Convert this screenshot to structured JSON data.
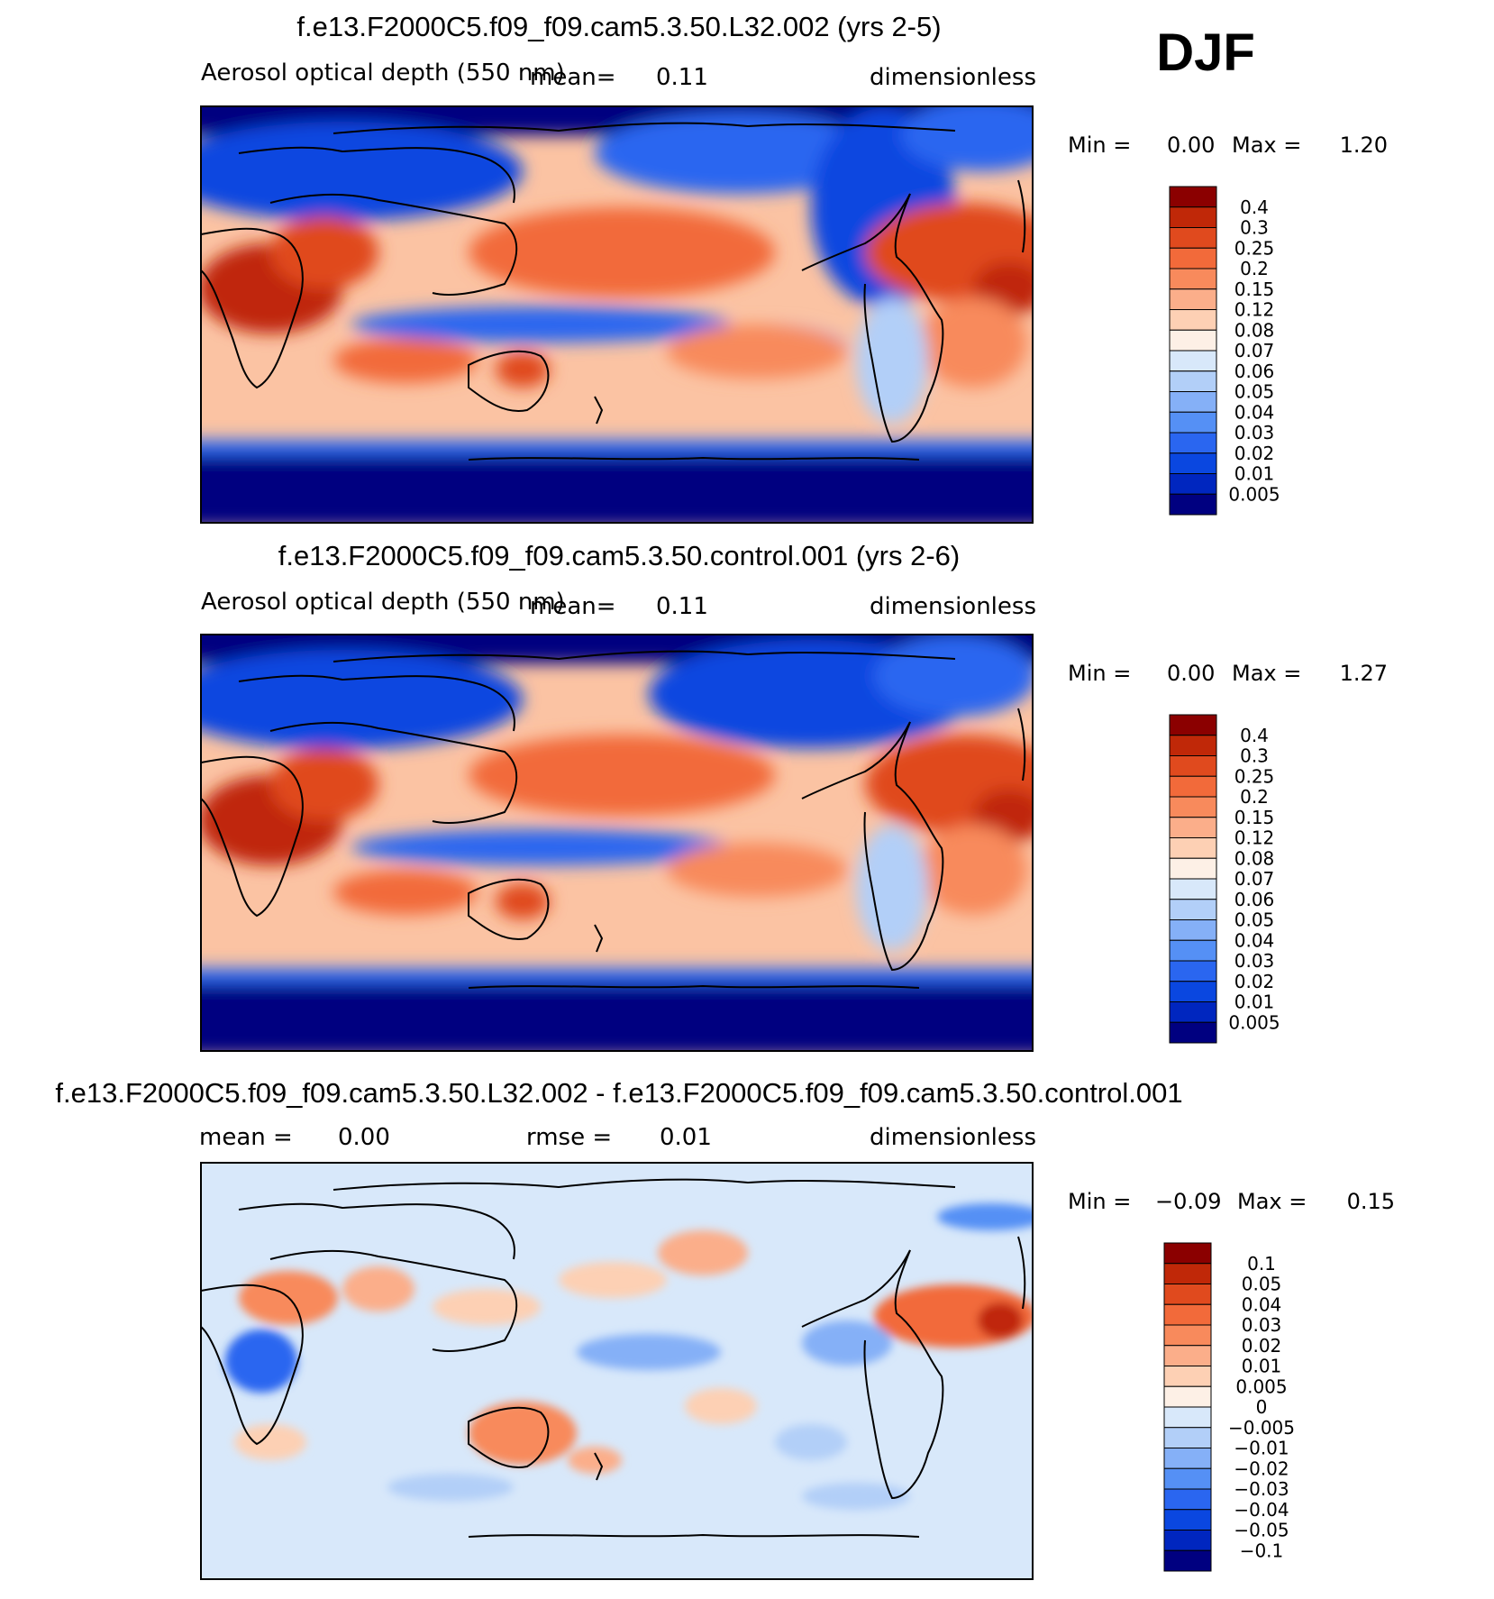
{
  "season": "DJF",
  "colors": {
    "main_scale": [
      "#000080",
      "#0026bf",
      "#0a47e0",
      "#2a66f0",
      "#5590f5",
      "#85b0f7",
      "#b2cff8",
      "#d8e8fa",
      "#fdf0e6",
      "#fdd0b4",
      "#fbae8a",
      "#f88a5c",
      "#f26a3a",
      "#e04a1e",
      "#c02808",
      "#8b0000"
    ],
    "diff_scale": [
      "#000080",
      "#0026bf",
      "#0a47e0",
      "#2a66f0",
      "#5590f5",
      "#85b0f7",
      "#b2cff8",
      "#d8e8fa",
      "#fdf0e6",
      "#fdd0b4",
      "#fbae8a",
      "#f88a5c",
      "#f26a3a",
      "#e04a1e",
      "#c02808",
      "#8b0000"
    ],
    "coastline": "#000000"
  },
  "chart_data": [
    {
      "type": "heatmap",
      "title": "f.e13.F2000C5.f09_f09.cam5.3.50.L32.002 (yrs 2-5)",
      "left_label": "Aerosol optical depth (550 nm)",
      "mean_label": "mean=",
      "mean_value": "0.11",
      "units": "dimensionless",
      "min_label": "Min =",
      "min_value": "0.00",
      "max_label": "Max =",
      "max_value": "1.20",
      "colorbar_levels": [
        "0.4",
        "0.3",
        "0.25",
        "0.2",
        "0.15",
        "0.12",
        "0.08",
        "0.07",
        "0.06",
        "0.05",
        "0.04",
        "0.03",
        "0.02",
        "0.01",
        "0.005"
      ]
    },
    {
      "type": "heatmap",
      "title": "f.e13.F2000C5.f09_f09.cam5.3.50.control.001 (yrs 2-6)",
      "left_label": "Aerosol optical depth (550 nm)",
      "mean_label": "mean=",
      "mean_value": "0.11",
      "units": "dimensionless",
      "min_label": "Min =",
      "min_value": "0.00",
      "max_label": "Max =",
      "max_value": "1.27",
      "colorbar_levels": [
        "0.4",
        "0.3",
        "0.25",
        "0.2",
        "0.15",
        "0.12",
        "0.08",
        "0.07",
        "0.06",
        "0.05",
        "0.04",
        "0.03",
        "0.02",
        "0.01",
        "0.005"
      ]
    },
    {
      "type": "heatmap",
      "title": "f.e13.F2000C5.f09_f09.cam5.3.50.L32.002 - f.e13.F2000C5.f09_f09.cam5.3.50.control.001",
      "mean_label": "mean =",
      "mean_value": "0.00",
      "rmse_label": "rmse =",
      "rmse_value": "0.01",
      "units": "dimensionless",
      "min_label": "Min =",
      "min_value": "−0.09",
      "max_label": "Max =",
      "max_value": "0.15",
      "colorbar_levels": [
        "0.1",
        "0.05",
        "0.04",
        "0.03",
        "0.02",
        "0.01",
        "0.005",
        "0",
        "−0.005",
        "−0.01",
        "−0.02",
        "−0.03",
        "−0.04",
        "−0.05",
        "−0.1"
      ]
    }
  ]
}
